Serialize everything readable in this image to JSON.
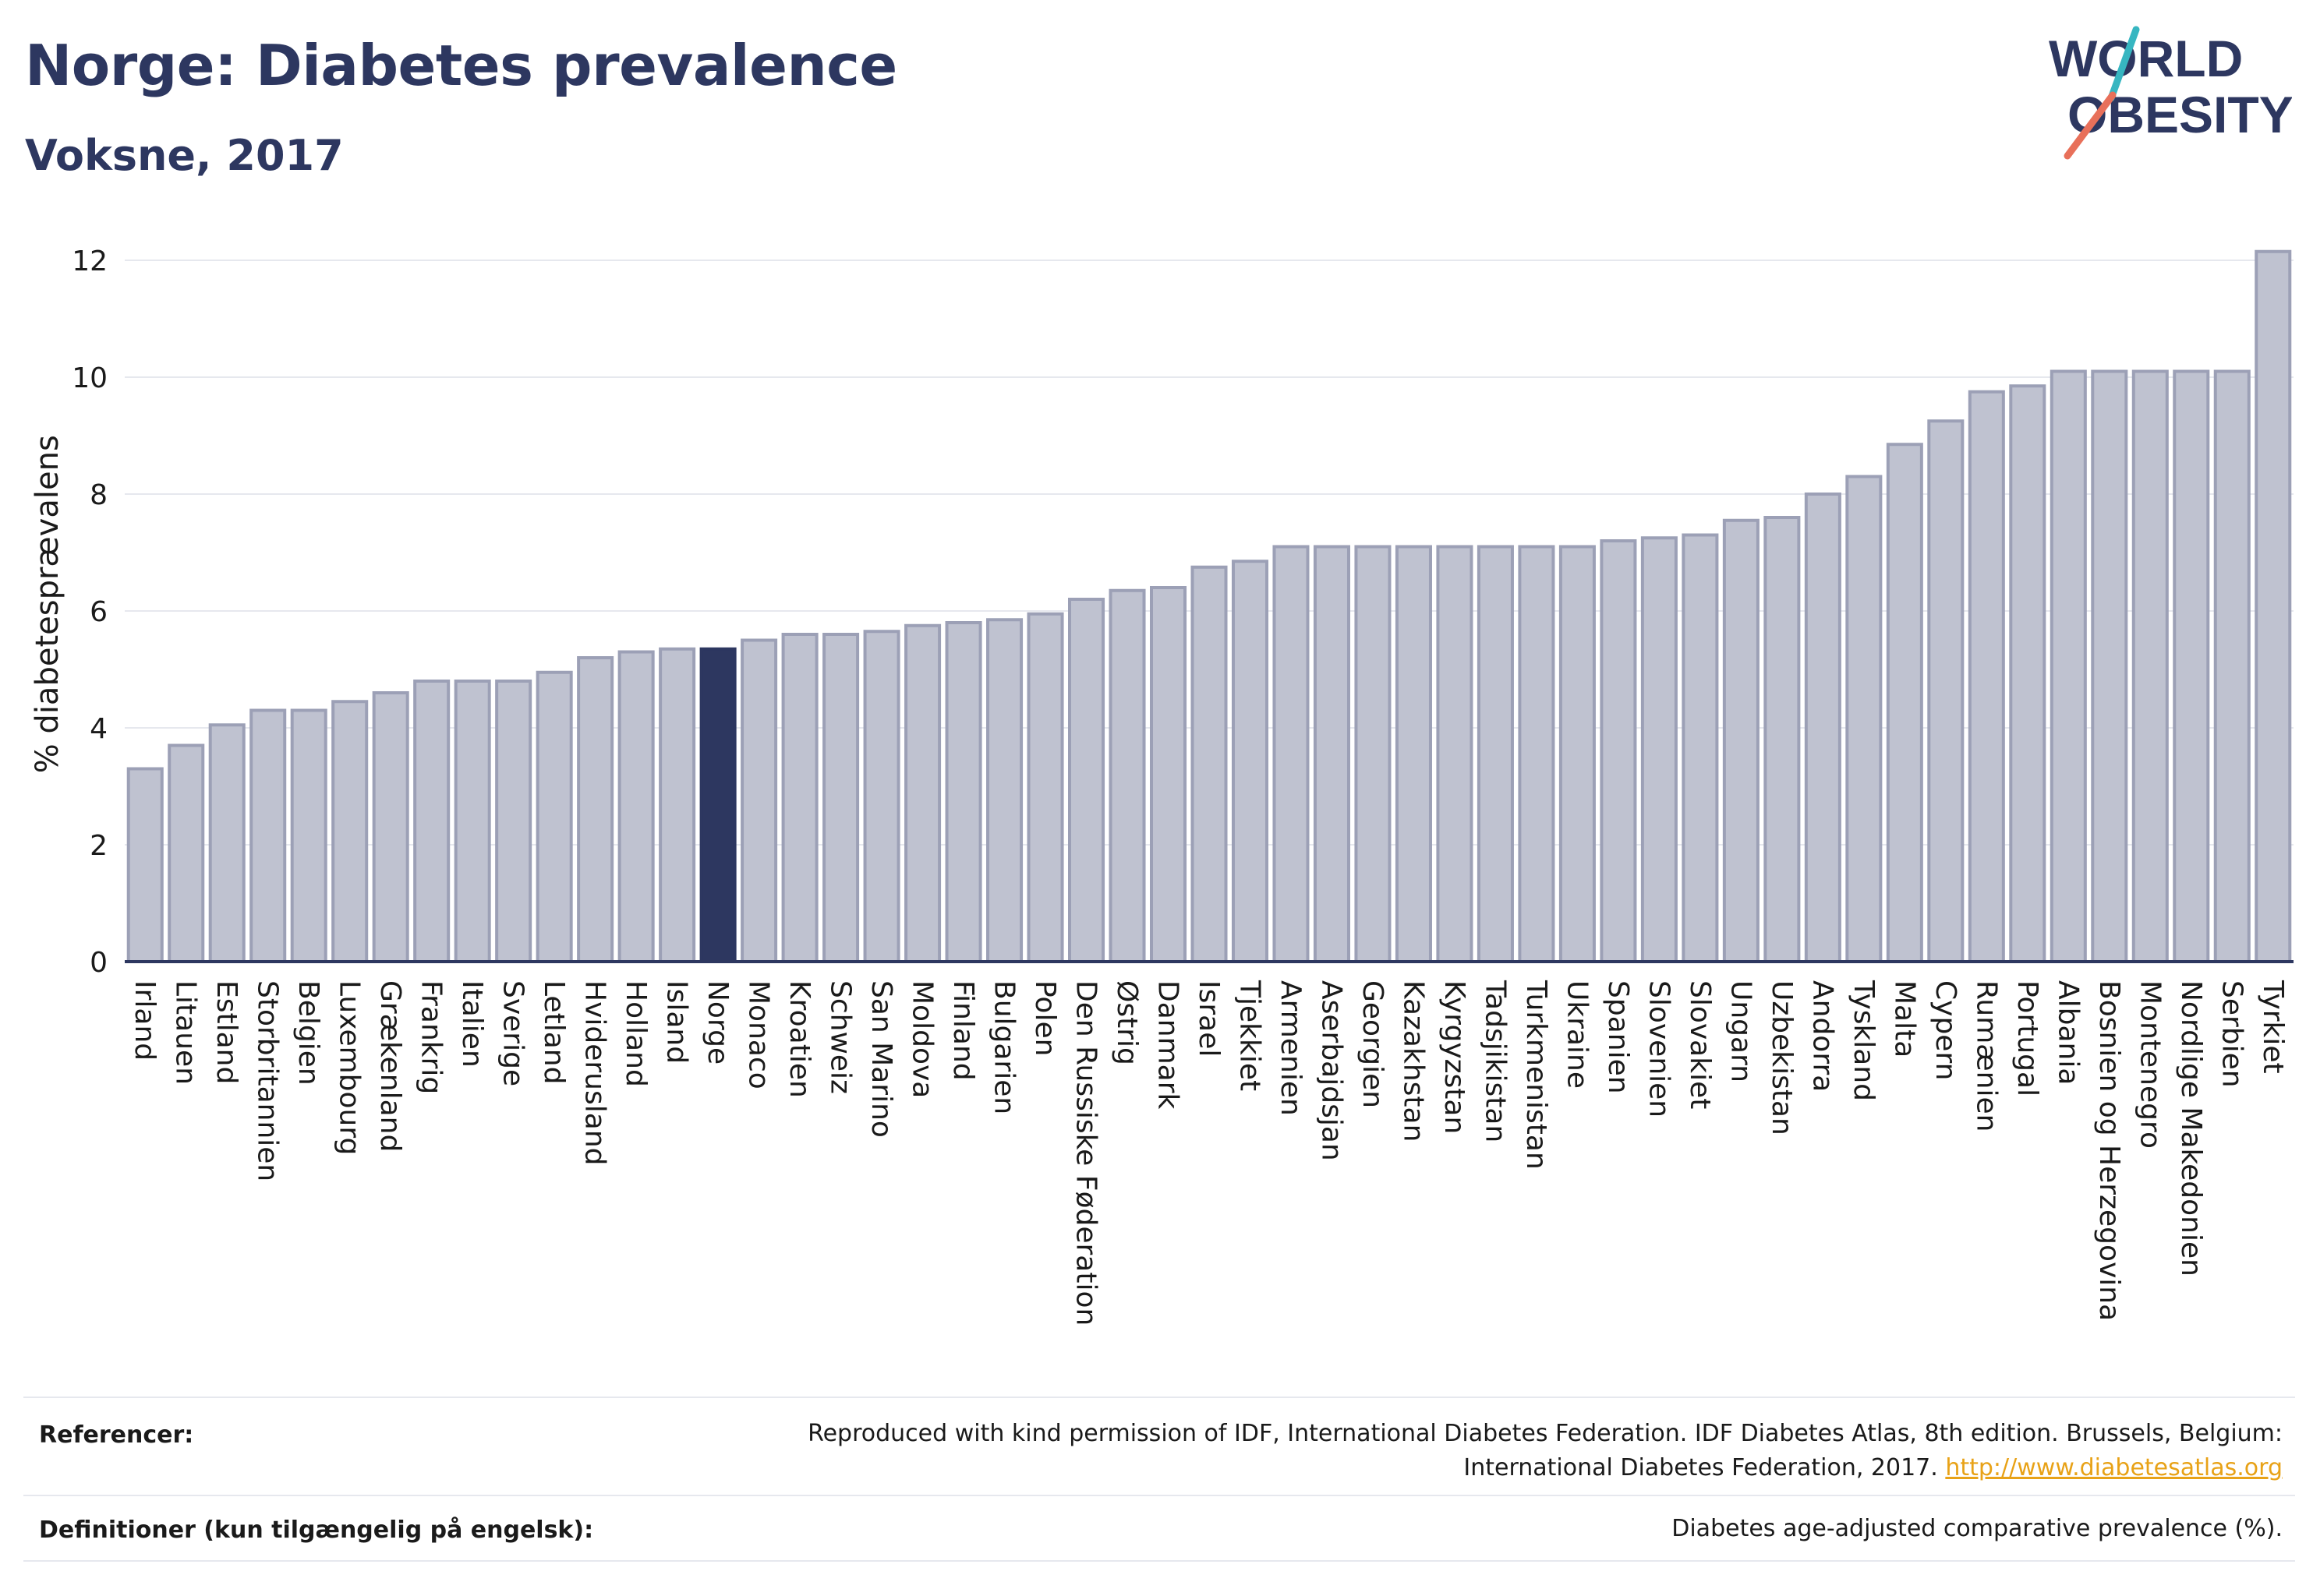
{
  "header": {
    "title": "Norge: Diabetes prevalence",
    "subtitle": "Voksne, 2017",
    "logo_line1": "WORLD",
    "logo_line2": "OBESITY"
  },
  "colors": {
    "bar": "#bfc2d0",
    "bar_stroke": "#9ca0b6",
    "highlight": "#2d3760",
    "grid": "#e6e8ee",
    "logo_navy": "#2d3760",
    "logo_teal": "#37b6c1",
    "logo_coral": "#e8705a",
    "link": "#e8a217"
  },
  "chart_data": {
    "type": "bar",
    "ylabel": "% diabetesprævalens",
    "ylim": [
      0,
      12.5
    ],
    "yticks": [
      0,
      2,
      4,
      6,
      8,
      10,
      12
    ],
    "grid": true,
    "highlight": "Norge",
    "categories": [
      "Irland",
      "Litauen",
      "Estland",
      "Storbritannien",
      "Belgien",
      "Luxembourg",
      "Grækenland",
      "Frankrig",
      "Italien",
      "Sverige",
      "Letland",
      "Hviderusland",
      "Holland",
      "Island",
      "Norge",
      "Monaco",
      "Kroatien",
      "Schweiz",
      "San Marino",
      "Moldova",
      "Finland",
      "Bulgarien",
      "Polen",
      "Den Russiske Føderation",
      "Østrig",
      "Danmark",
      "Israel",
      "Tjekkiet",
      "Armenien",
      "Aserbajdsjan",
      "Georgien",
      "Kazakhstan",
      "Kyrgyzstan",
      "Tadsjikistan",
      "Turkmenistan",
      "Ukraine",
      "Spanien",
      "Slovenien",
      "Slovakiet",
      "Ungarn",
      "Uzbekistan",
      "Andorra",
      "Tyskland",
      "Malta",
      "Cypern",
      "Rumænien",
      "Portugal",
      "Albania",
      "Bosnien og Herzegovina",
      "Montenegro",
      "Nordlige Makedonien",
      "Serbien",
      "Tyrkiet"
    ],
    "values": [
      3.3,
      3.7,
      4.05,
      4.3,
      4.3,
      4.45,
      4.6,
      4.8,
      4.8,
      4.8,
      4.95,
      5.2,
      5.3,
      5.35,
      5.35,
      5.5,
      5.6,
      5.6,
      5.65,
      5.75,
      5.8,
      5.85,
      5.95,
      6.2,
      6.35,
      6.4,
      6.75,
      6.85,
      7.1,
      7.1,
      7.1,
      7.1,
      7.1,
      7.1,
      7.1,
      7.1,
      7.2,
      7.25,
      7.3,
      7.55,
      7.6,
      8.0,
      8.3,
      8.85,
      9.25,
      9.75,
      9.85,
      10.1,
      10.1,
      10.1,
      10.1,
      10.1,
      12.15
    ]
  },
  "footer": {
    "references_label": "Referencer:",
    "references_text_1": "Reproduced with kind permission of IDF, International Diabetes Federation. IDF Diabetes Atlas, 8th edition. Brussels, Belgium:",
    "references_text_2": "International Diabetes Federation, 2017.",
    "references_link": "http://www.diabetesatlas.org",
    "definitions_label": "Definitioner (kun tilgængelig på engelsk):",
    "definitions_text": "Diabetes age-adjusted comparative prevalence (%)."
  }
}
